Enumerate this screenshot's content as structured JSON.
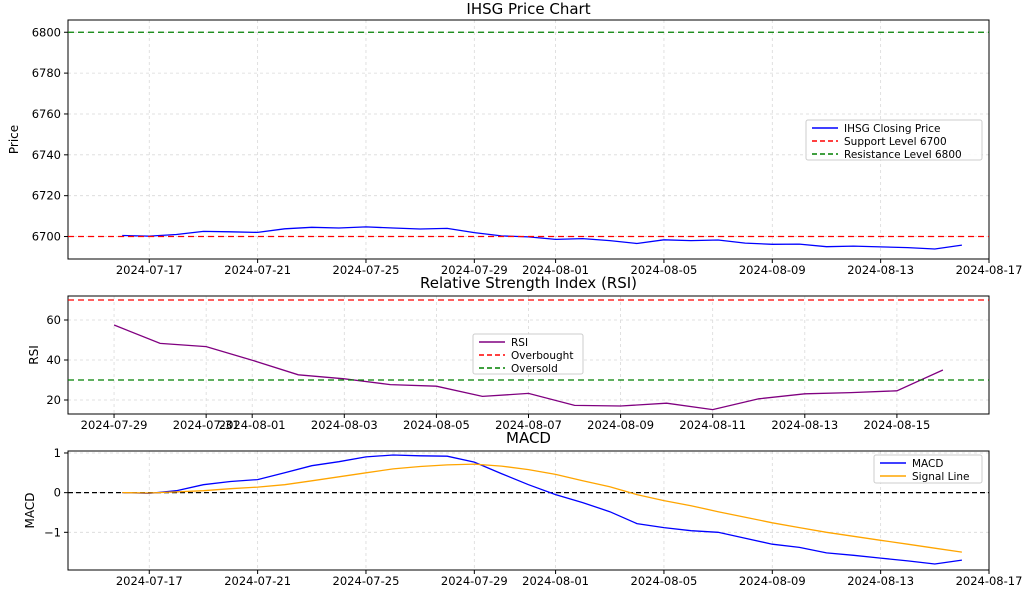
{
  "chart_data": [
    {
      "type": "line",
      "title": "IHSG Price Chart",
      "xlabel": "",
      "ylabel": "Price",
      "x_ticks": [
        "2024-07-17",
        "2024-07-21",
        "2024-07-25",
        "2024-07-29",
        "2024-08-01",
        "2024-08-05",
        "2024-08-09",
        "2024-08-13",
        "2024-08-17"
      ],
      "y_ticks": [
        6700,
        6720,
        6740,
        6760,
        6780,
        6800
      ],
      "xlim": [
        "2024-07-14",
        "2024-08-17"
      ],
      "ylim": [
        6689,
        6806
      ],
      "grid": true,
      "legend_position": "center-right",
      "x": [
        "2024-07-16",
        "2024-07-17",
        "2024-07-18",
        "2024-07-19",
        "2024-07-20",
        "2024-07-21",
        "2024-07-22",
        "2024-07-23",
        "2024-07-24",
        "2024-07-25",
        "2024-07-26",
        "2024-07-27",
        "2024-07-28",
        "2024-07-29",
        "2024-07-30",
        "2024-07-31",
        "2024-08-01",
        "2024-08-02",
        "2024-08-03",
        "2024-08-04",
        "2024-08-05",
        "2024-08-06",
        "2024-08-07",
        "2024-08-08",
        "2024-08-09",
        "2024-08-10",
        "2024-08-11",
        "2024-08-12",
        "2024-08-13",
        "2024-08-14",
        "2024-08-15",
        "2024-08-16"
      ],
      "series": [
        {
          "name": "IHSG Closing Price",
          "color": "#0000ff",
          "style": "solid",
          "values": [
            6700.5,
            6700.2,
            6701.0,
            6702.5,
            6702.3,
            6702.0,
            6703.8,
            6704.5,
            6704.2,
            6704.7,
            6704.2,
            6703.7,
            6704.0,
            6701.9,
            6700.3,
            6699.8,
            6698.6,
            6699.0,
            6698.0,
            6696.6,
            6698.4,
            6698.0,
            6698.3,
            6696.8,
            6696.2,
            6696.3,
            6695.0,
            6695.3,
            6694.9,
            6694.6,
            6693.9,
            6695.8
          ]
        },
        {
          "name": "Support Level 6700",
          "color": "#ff0000",
          "style": "dashed",
          "constant": 6700
        },
        {
          "name": "Resistance Level 6800",
          "color": "#008000",
          "style": "dashed",
          "constant": 6800
        }
      ]
    },
    {
      "type": "line",
      "title": "Relative Strength Index (RSI)",
      "xlabel": "",
      "ylabel": "RSI",
      "x_ticks": [
        "2024-07-29",
        "2024-07-31",
        "2024-08-01",
        "2024-08-03",
        "2024-08-05",
        "2024-08-07",
        "2024-08-09",
        "2024-08-11",
        "2024-08-13",
        "2024-08-15"
      ],
      "x_tick_labels_rendered": [
        "2024-07-29",
        "2024-07-31",
        "2024-08-01",
        "2024-08-03",
        "2024-08-05",
        "2024-08-07",
        "2024-08-09",
        "2024-08-11",
        "2024-08-13",
        "2024-08-15"
      ],
      "y_ticks": [
        20,
        40,
        60
      ],
      "xlim": [
        "2024-07-28",
        "2024-08-17"
      ],
      "ylim": [
        13,
        72
      ],
      "grid": true,
      "legend_position": "center",
      "x": [
        "2024-07-29",
        "2024-07-30",
        "2024-07-31",
        "2024-08-01",
        "2024-08-02",
        "2024-08-03",
        "2024-08-04",
        "2024-08-05",
        "2024-08-06",
        "2024-08-07",
        "2024-08-08",
        "2024-08-09",
        "2024-08-10",
        "2024-08-11",
        "2024-08-12",
        "2024-08-13",
        "2024-08-14",
        "2024-08-15",
        "2024-08-16"
      ],
      "series": [
        {
          "name": "RSI",
          "color": "#800080",
          "style": "solid",
          "values": [
            57.5,
            48.3,
            46.7,
            39.9,
            32.6,
            30.6,
            27.7,
            26.9,
            21.8,
            23.3,
            17.3,
            17.0,
            18.4,
            15.2,
            20.6,
            23.1,
            23.7,
            24.6,
            35.0
          ]
        },
        {
          "name": "Overbought",
          "color": "#ff0000",
          "style": "dashed",
          "constant": 70
        },
        {
          "name": "Oversold",
          "color": "#008000",
          "style": "dashed",
          "constant": 30
        }
      ]
    },
    {
      "type": "line",
      "title": "MACD",
      "xlabel": "",
      "ylabel": "MACD",
      "x_ticks": [
        "2024-07-17",
        "2024-07-21",
        "2024-07-25",
        "2024-07-29",
        "2024-08-01",
        "2024-08-05",
        "2024-08-09",
        "2024-08-13",
        "2024-08-17"
      ],
      "y_ticks": [
        -1,
        0,
        1
      ],
      "xlim": [
        "2024-07-14",
        "2024-08-17"
      ],
      "ylim": [
        -1.95,
        1.05
      ],
      "grid": true,
      "legend_position": "top-right",
      "zero_line": true,
      "x": [
        "2024-07-16",
        "2024-07-17",
        "2024-07-18",
        "2024-07-19",
        "2024-07-20",
        "2024-07-21",
        "2024-07-22",
        "2024-07-23",
        "2024-07-24",
        "2024-07-25",
        "2024-07-26",
        "2024-07-27",
        "2024-07-28",
        "2024-07-29",
        "2024-07-30",
        "2024-07-31",
        "2024-08-01",
        "2024-08-02",
        "2024-08-03",
        "2024-08-04",
        "2024-08-05",
        "2024-08-06",
        "2024-08-07",
        "2024-08-08",
        "2024-08-09",
        "2024-08-10",
        "2024-08-11",
        "2024-08-12",
        "2024-08-13",
        "2024-08-14",
        "2024-08-15",
        "2024-08-16"
      ],
      "series": [
        {
          "name": "MACD",
          "color": "#0000ff",
          "style": "solid",
          "values": [
            0.0,
            -0.02,
            0.05,
            0.2,
            0.28,
            0.33,
            0.5,
            0.68,
            0.78,
            0.9,
            0.95,
            0.93,
            0.92,
            0.77,
            0.48,
            0.2,
            -0.05,
            -0.25,
            -0.48,
            -0.78,
            -0.88,
            -0.96,
            -1.0,
            -1.15,
            -1.3,
            -1.38,
            -1.52,
            -1.58,
            -1.65,
            -1.72,
            -1.8,
            -1.7
          ]
        },
        {
          "name": "Signal Line",
          "color": "#ffa500",
          "style": "solid",
          "values": [
            0.0,
            -0.01,
            0.02,
            0.05,
            0.1,
            0.14,
            0.2,
            0.3,
            0.4,
            0.5,
            0.6,
            0.66,
            0.7,
            0.72,
            0.67,
            0.58,
            0.46,
            0.3,
            0.15,
            -0.05,
            -0.2,
            -0.33,
            -0.48,
            -0.62,
            -0.76,
            -0.88,
            -1.0,
            -1.1,
            -1.2,
            -1.3,
            -1.4,
            -1.5
          ]
        }
      ]
    }
  ]
}
